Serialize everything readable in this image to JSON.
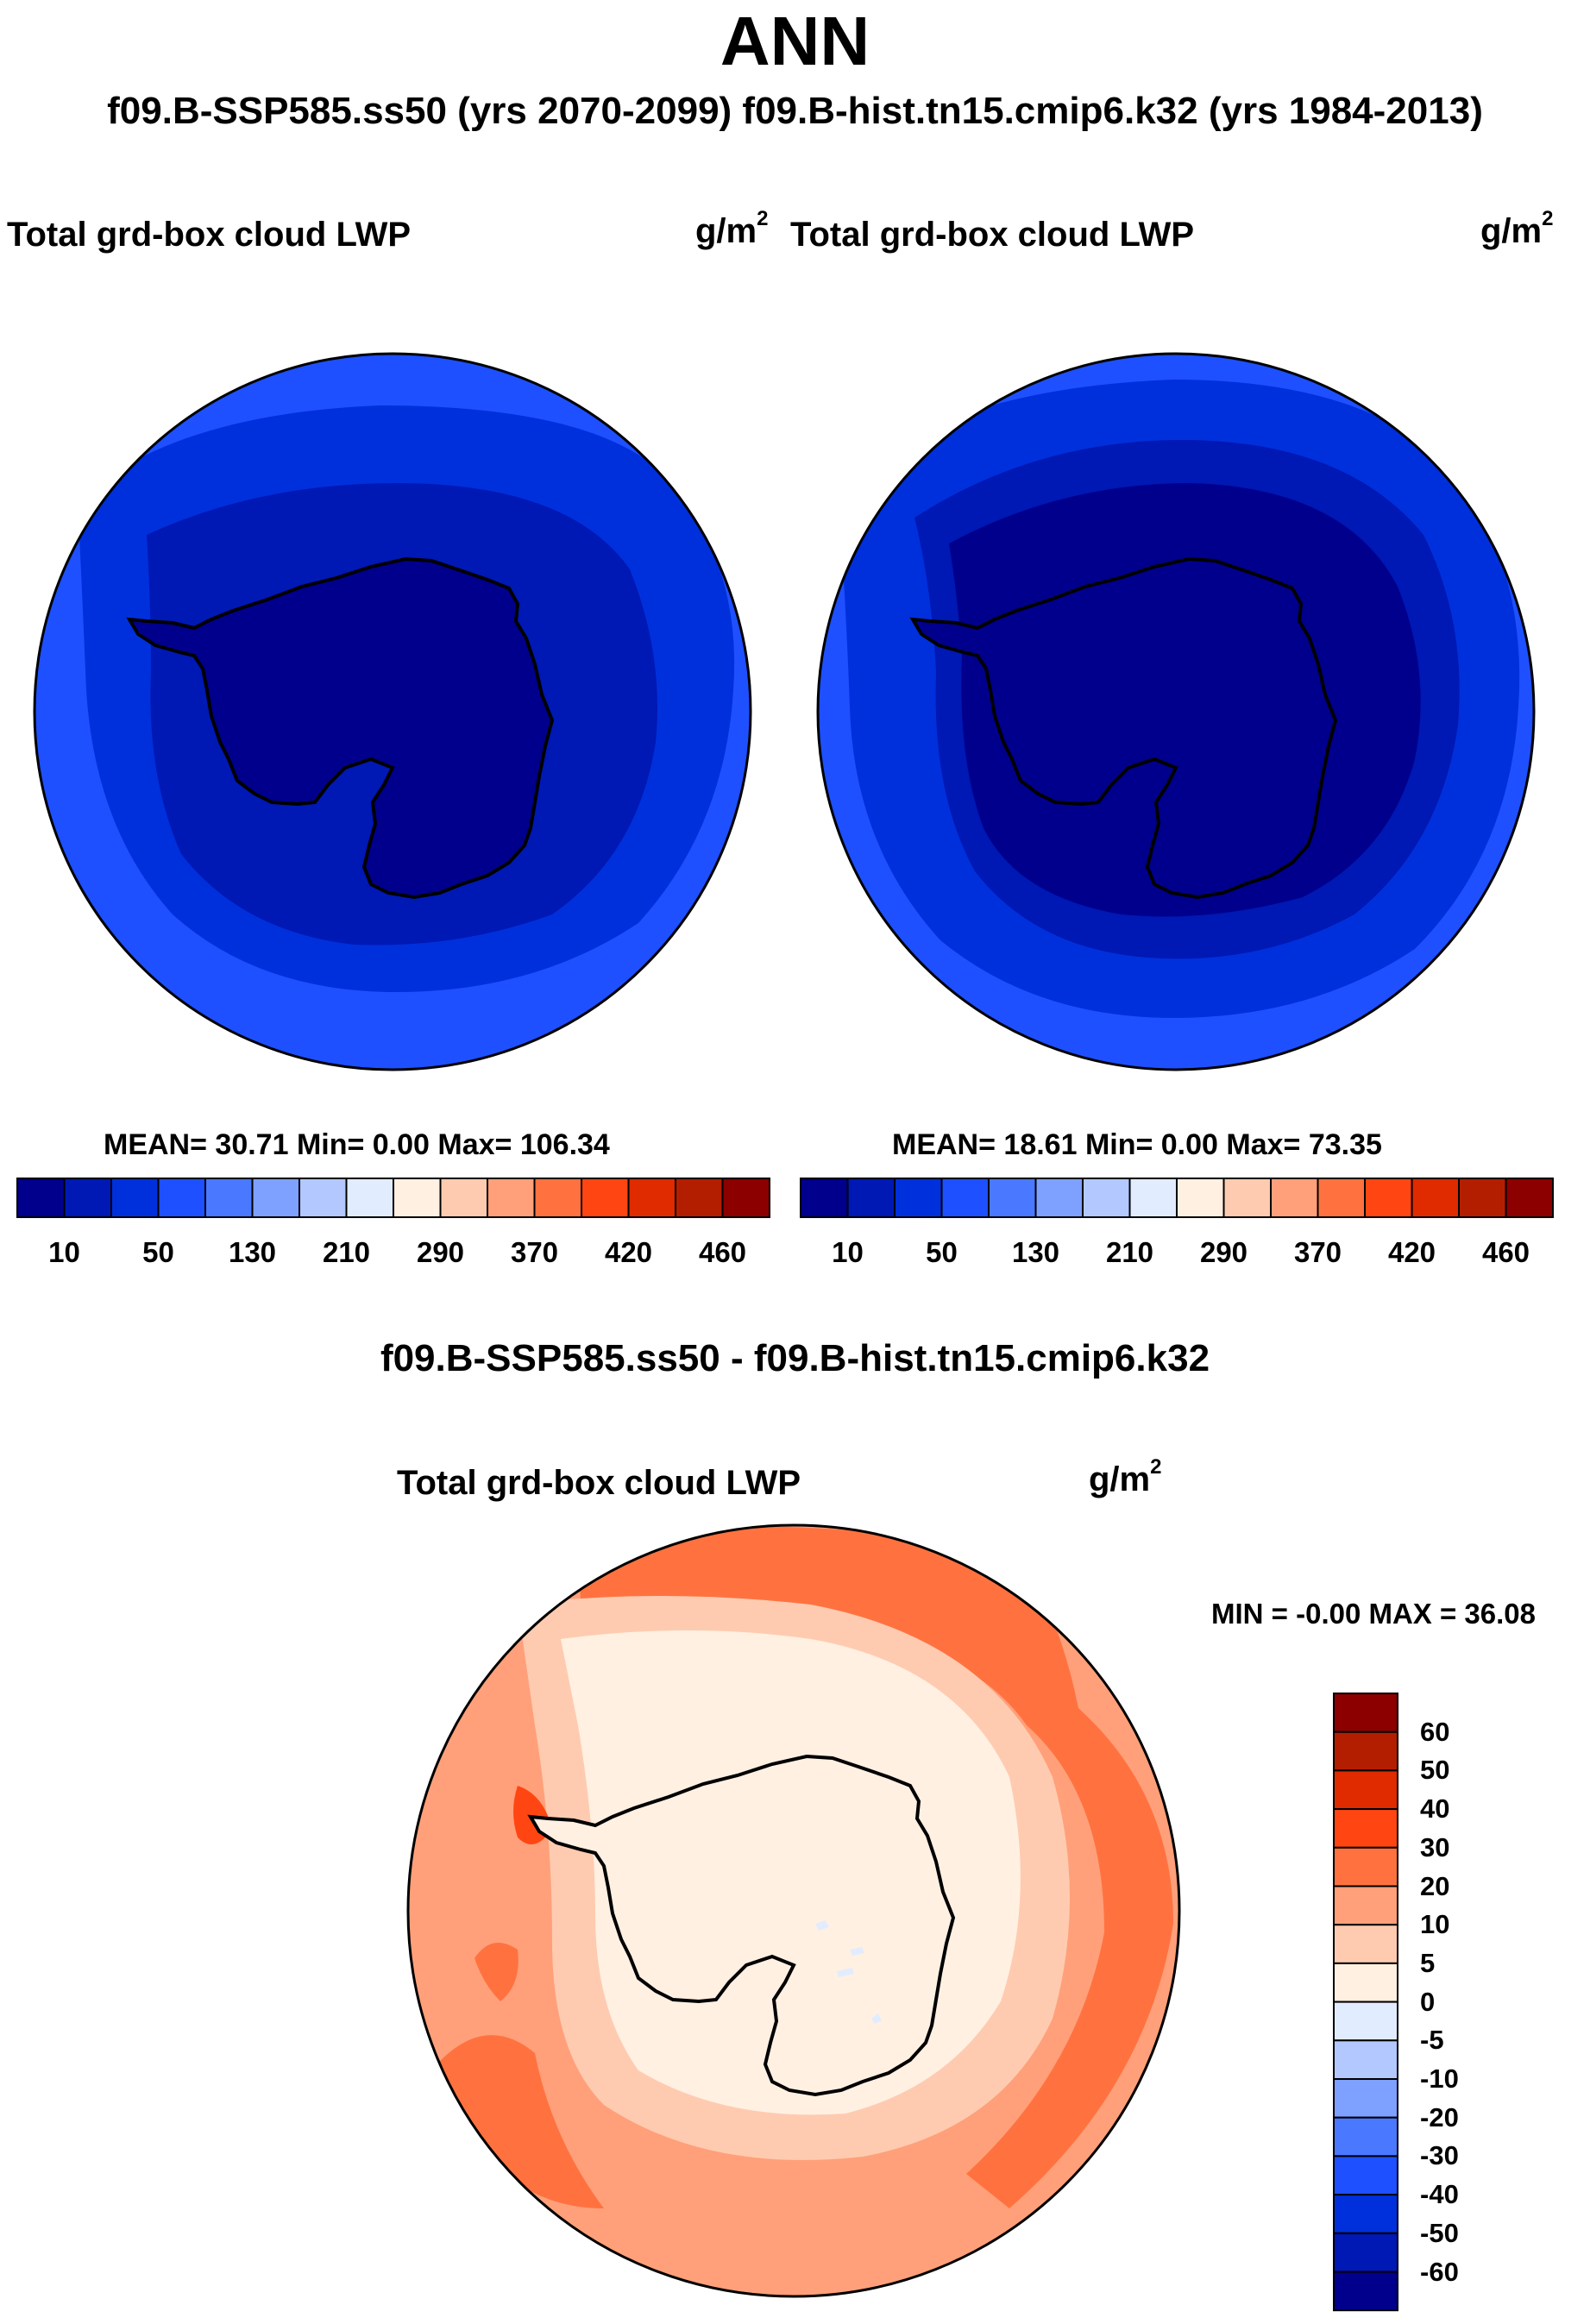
{
  "title": "ANN",
  "subtitle": "f09.B-SSP585.ss50 (yrs 2070-2099)  f09.B-hist.tn15.cmip6.k32 (yrs 1984-2013)",
  "colors": {
    "abs_scale": [
      "#00008c",
      "#0018b4",
      "#0030dc",
      "#1e50ff",
      "#4a78ff",
      "#7ea0ff",
      "#b2c8ff",
      "#e2ecff",
      "#fff0e2",
      "#ffcbb0",
      "#ffa07a",
      "#ff7240",
      "#ff4612",
      "#e02a00",
      "#b41e00",
      "#8c0000"
    ],
    "diff_scale": [
      "#00008c",
      "#0018b4",
      "#0030dc",
      "#1e50ff",
      "#4a78ff",
      "#7ea0ff",
      "#b2c8ff",
      "#e2ecff",
      "#fff0e2",
      "#ffcbb0",
      "#ffa07a",
      "#ff7240",
      "#ff4612",
      "#e02a00",
      "#b41e00",
      "#8c0000"
    ],
    "coastline": "#000000"
  },
  "panels": {
    "left": {
      "field": "Total grd-box cloud LWP",
      "units": "g/m",
      "units_exp": "2",
      "stats": "MEAN=  30.71  Min=    0.00  Max= 106.34"
    },
    "right": {
      "field": "Total grd-box cloud LWP",
      "units": "g/m",
      "units_exp": "2",
      "stats": "MEAN=  18.61  Min=    0.00  Max=  73.35"
    },
    "diff": {
      "title": "f09.B-SSP585.ss50 - f09.B-hist.tn15.cmip6.k32",
      "field": "Total grd-box cloud LWP",
      "units": "g/m",
      "units_exp": "2",
      "minmax": "MIN =  -0.00 MAX =  36.08"
    }
  },
  "abs_colorbar_labels": [
    "10",
    "50",
    "130",
    "210",
    "290",
    "370",
    "420",
    "460"
  ],
  "diff_colorbar_labels": [
    "60",
    "50",
    "40",
    "30",
    "20",
    "10",
    "5",
    "0",
    "-5",
    "-10",
    "-20",
    "-30",
    "-40",
    "-50",
    "-60"
  ]
}
